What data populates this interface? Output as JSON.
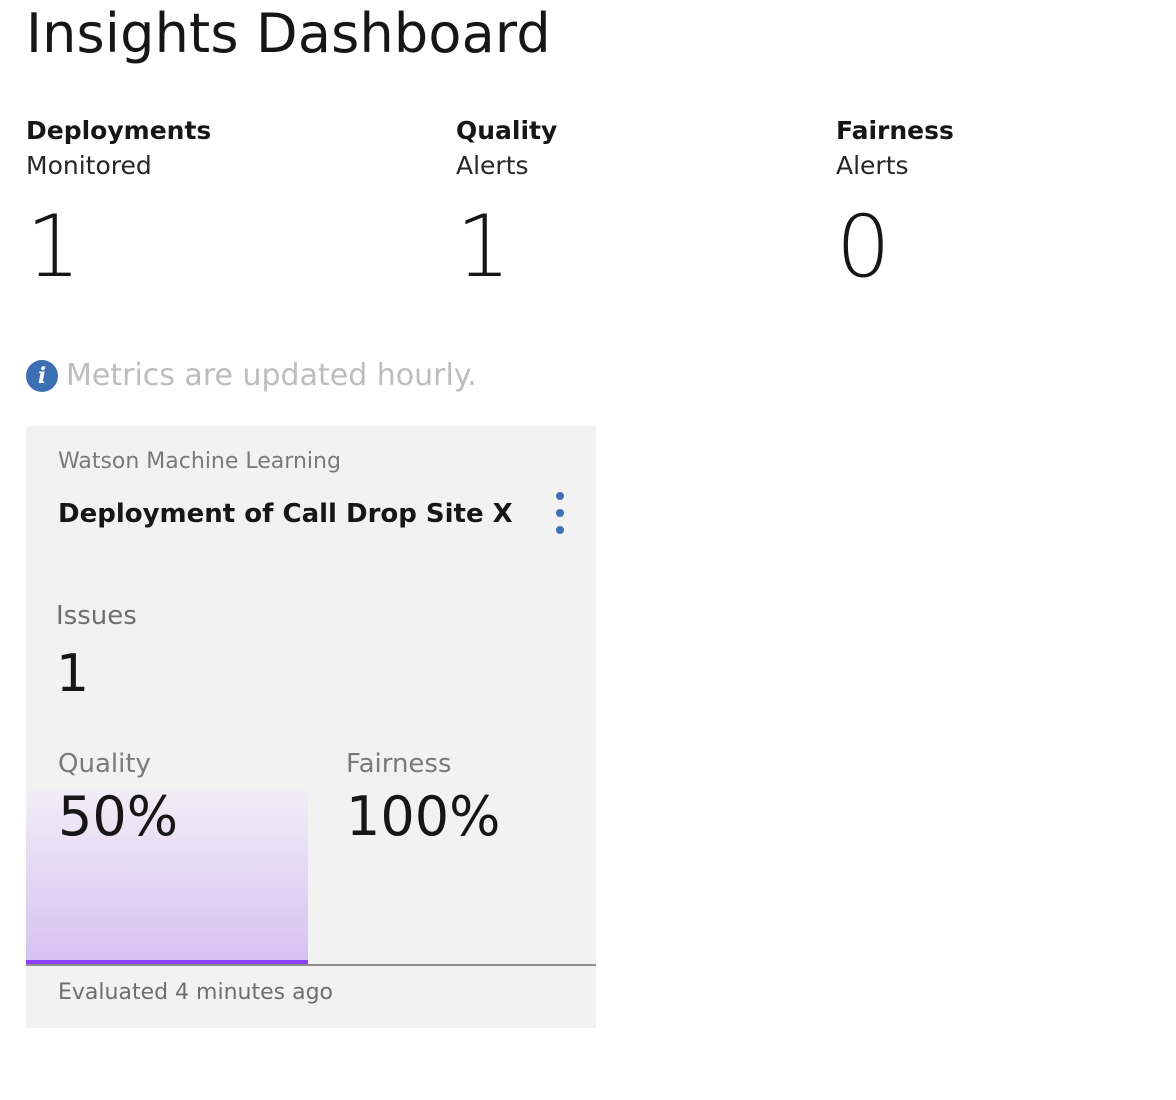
{
  "header": {
    "title": "Insights Dashboard"
  },
  "stats": [
    {
      "label_primary": "Deployments",
      "label_secondary": "Monitored",
      "value": "1"
    },
    {
      "label_primary": "Quality",
      "label_secondary": "Alerts",
      "value": "1"
    },
    {
      "label_primary": "Fairness",
      "label_secondary": "Alerts",
      "value": "0"
    }
  ],
  "notice": {
    "icon": "info-icon",
    "text": "Metrics are updated hourly."
  },
  "card": {
    "source": "Watson Machine Learning",
    "title": "Deployment of Call Drop Site X",
    "menu_icon": "overflow-menu-icon",
    "issues_label": "Issues",
    "issues_value": "1",
    "quality_label": "Quality",
    "quality_value": "50%",
    "quality_fraction": 0.5,
    "fairness_label": "Fairness",
    "fairness_value": "100%",
    "evaluated": "Evaluated 4 minutes ago"
  },
  "colors": {
    "accent": "#8a3ffc",
    "info_icon": "#3d6fb5",
    "card_bg": "#f2f2f2"
  }
}
